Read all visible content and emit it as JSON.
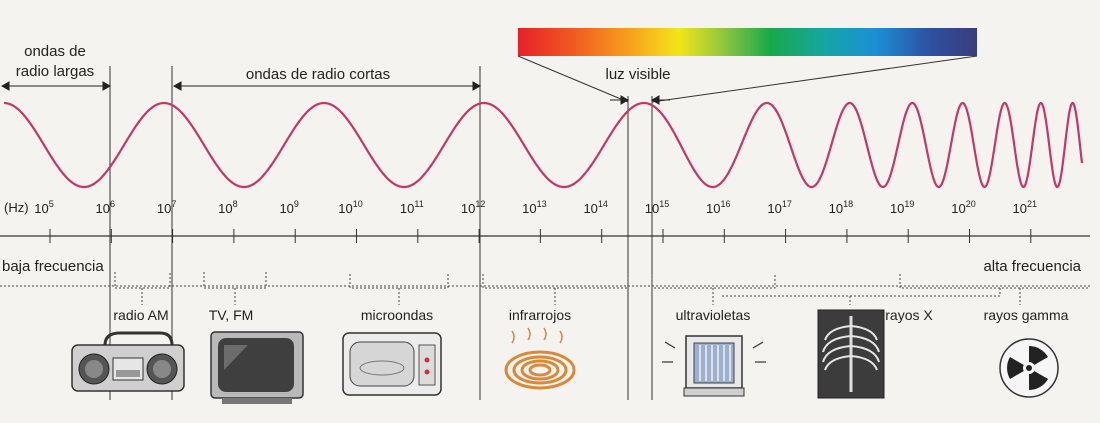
{
  "regions": {
    "long_radio": "ondas de\nradio largas",
    "short_radio": "ondas de radio cortas",
    "visible": "luz visible"
  },
  "axis": {
    "unit": "(Hz)",
    "ticks": [
      {
        "base": "10",
        "exp": "5"
      },
      {
        "base": "10",
        "exp": "6"
      },
      {
        "base": "10",
        "exp": "7"
      },
      {
        "base": "10",
        "exp": "8"
      },
      {
        "base": "10",
        "exp": "9"
      },
      {
        "base": "10",
        "exp": "10"
      },
      {
        "base": "10",
        "exp": "11"
      },
      {
        "base": "10",
        "exp": "12"
      },
      {
        "base": "10",
        "exp": "13"
      },
      {
        "base": "10",
        "exp": "14"
      },
      {
        "base": "10",
        "exp": "15"
      },
      {
        "base": "10",
        "exp": "16"
      },
      {
        "base": "10",
        "exp": "17"
      },
      {
        "base": "10",
        "exp": "18"
      },
      {
        "base": "10",
        "exp": "19"
      },
      {
        "base": "10",
        "exp": "20"
      },
      {
        "base": "10",
        "exp": "21"
      }
    ],
    "low_label": "baja frecuencia",
    "high_label": "alta frecuencia"
  },
  "bands": [
    {
      "label": "radio AM",
      "icon": "radio-cassette-icon"
    },
    {
      "label": "TV, FM",
      "icon": "television-icon"
    },
    {
      "label": "microondas",
      "icon": "microwave-oven-icon"
    },
    {
      "label": "infrarrojos",
      "icon": "heating-coil-icon"
    },
    {
      "label": "ultravioletas",
      "icon": "uv-lamp-icon"
    },
    {
      "label": "rayos X",
      "icon": "xray-chest-icon"
    },
    {
      "label": "rayos gamma",
      "icon": "radiation-symbol-icon"
    }
  ],
  "colors": {
    "wave": "#c8356a",
    "line": "#333333"
  }
}
